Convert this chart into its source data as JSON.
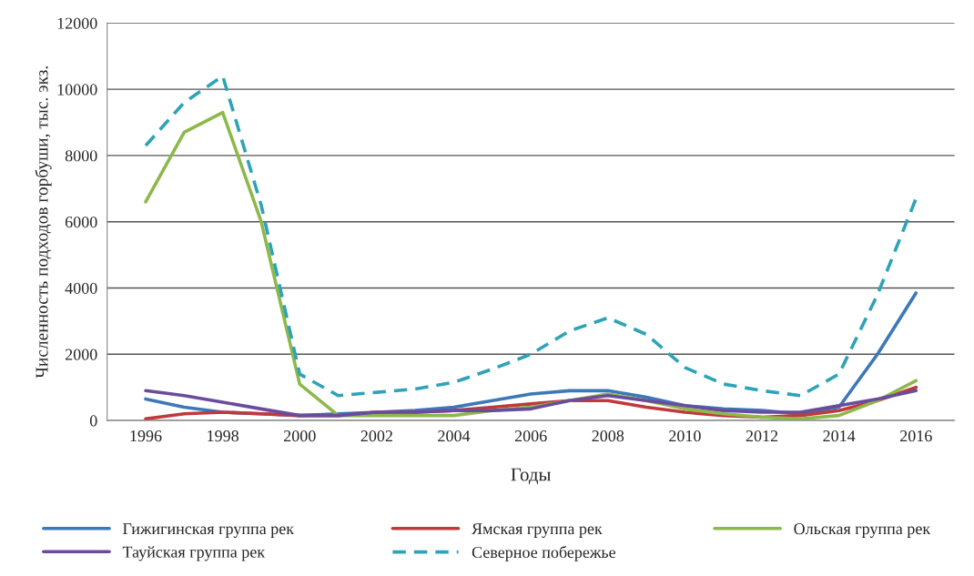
{
  "chart_data": {
    "type": "line",
    "xlabel": "Годы",
    "ylabel": "Численность подходов горбуши, тыс. экз.",
    "x": [
      1996,
      1997,
      1998,
      1999,
      2000,
      2001,
      2002,
      2003,
      2004,
      2005,
      2006,
      2007,
      2008,
      2009,
      2010,
      2011,
      2012,
      2013,
      2014,
      2015,
      2016
    ],
    "series": [
      {
        "name": "Гижигинская группа рек",
        "color": "#3d78b8",
        "values": [
          650,
          400,
          250,
          200,
          150,
          200,
          250,
          300,
          400,
          600,
          800,
          900,
          900,
          700,
          450,
          350,
          300,
          200,
          400,
          2000,
          3850
        ]
      },
      {
        "name": "Ямская группа рек",
        "color": "#c0393b",
        "values": [
          50,
          200,
          250,
          200,
          150,
          150,
          250,
          250,
          300,
          400,
          500,
          600,
          600,
          400,
          250,
          150,
          100,
          150,
          300,
          600,
          1000
        ]
      },
      {
        "name": "Ольская группа рек",
        "color": "#8db84a",
        "values": [
          6600,
          8700,
          9300,
          6000,
          1100,
          150,
          150,
          150,
          150,
          300,
          400,
          600,
          800,
          600,
          350,
          200,
          100,
          50,
          150,
          600,
          1200
        ]
      },
      {
        "name": "Тауйская группа рек",
        "color": "#6a4c9c",
        "values": [
          900,
          750,
          550,
          350,
          150,
          150,
          250,
          250,
          300,
          300,
          350,
          600,
          750,
          600,
          450,
          300,
          250,
          250,
          450,
          650,
          900
        ]
      },
      {
        "name": "Северное побережье",
        "color": "#2ea3b8",
        "line_style": "dashed",
        "values": [
          8300,
          9600,
          10400,
          6500,
          1400,
          750,
          850,
          950,
          1150,
          1550,
          2000,
          2700,
          3100,
          2600,
          1600,
          1100,
          900,
          750,
          1400,
          3800,
          6700
        ]
      }
    ],
    "xlim": [
      1995,
      2017
    ],
    "xticks": [
      1996,
      1998,
      2000,
      2002,
      2004,
      2006,
      2008,
      2010,
      2012,
      2014,
      2016
    ],
    "ylim": [
      0,
      12000
    ],
    "yticks": [
      0,
      2000,
      4000,
      6000,
      8000,
      10000,
      12000
    ],
    "grid": "y",
    "legend": "bottom",
    "marker": "none",
    "line_style": "solid"
  }
}
